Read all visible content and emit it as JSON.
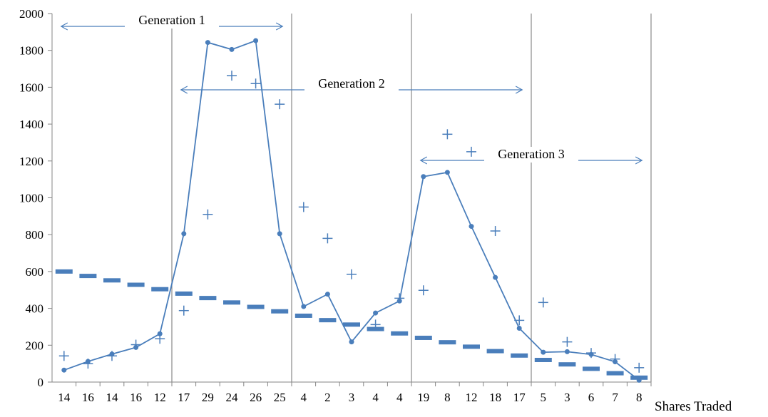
{
  "chart_data": {
    "type": "line",
    "xlabel": "Shares Traded",
    "ylabel": "",
    "ylim": [
      0,
      2000
    ],
    "yticks": [
      0,
      200,
      400,
      600,
      800,
      1000,
      1200,
      1400,
      1600,
      1800,
      2000
    ],
    "grid": false,
    "categories": [
      "14",
      "16",
      "14",
      "16",
      "12",
      "17",
      "29",
      "24",
      "26",
      "25",
      "4",
      "2",
      "3",
      "4",
      "4",
      "19",
      "8",
      "12",
      "18",
      "17",
      "5",
      "3",
      "6",
      "7",
      "8"
    ],
    "series": [
      {
        "marker": "circle-line",
        "color": "#4a7ebb",
        "values": [
          65,
          112,
          152,
          188,
          262,
          805,
          1843,
          1805,
          1853,
          805,
          410,
          477,
          218,
          375,
          440,
          1115,
          1138,
          845,
          568,
          292,
          162,
          165,
          150,
          110,
          10
        ]
      },
      {
        "marker": "plus",
        "color": "#4a7ebb",
        "values": [
          142,
          100,
          142,
          203,
          235,
          388,
          910,
          1663,
          1620,
          1508,
          950,
          780,
          585,
          312,
          455,
          498,
          1345,
          1250,
          820,
          335,
          432,
          218,
          158,
          125,
          78
        ]
      },
      {
        "marker": "dash",
        "color": "#4a7ebb",
        "values": [
          600,
          576,
          552,
          528,
          504,
          480,
          456,
          432,
          408,
          384,
          360,
          336,
          312,
          288,
          264,
          240,
          216,
          192,
          168,
          144,
          120,
          96,
          72,
          48,
          24
        ]
      }
    ],
    "dividers_after_index": [
      4,
      9,
      14,
      19,
      24
    ],
    "annotations": [
      {
        "label": "Generation 1",
        "from": 0,
        "to": 9
      },
      {
        "label": "Generation 2",
        "from": 5,
        "to": 19
      },
      {
        "label": "Generation 3",
        "from": 15,
        "to": 24
      }
    ]
  }
}
